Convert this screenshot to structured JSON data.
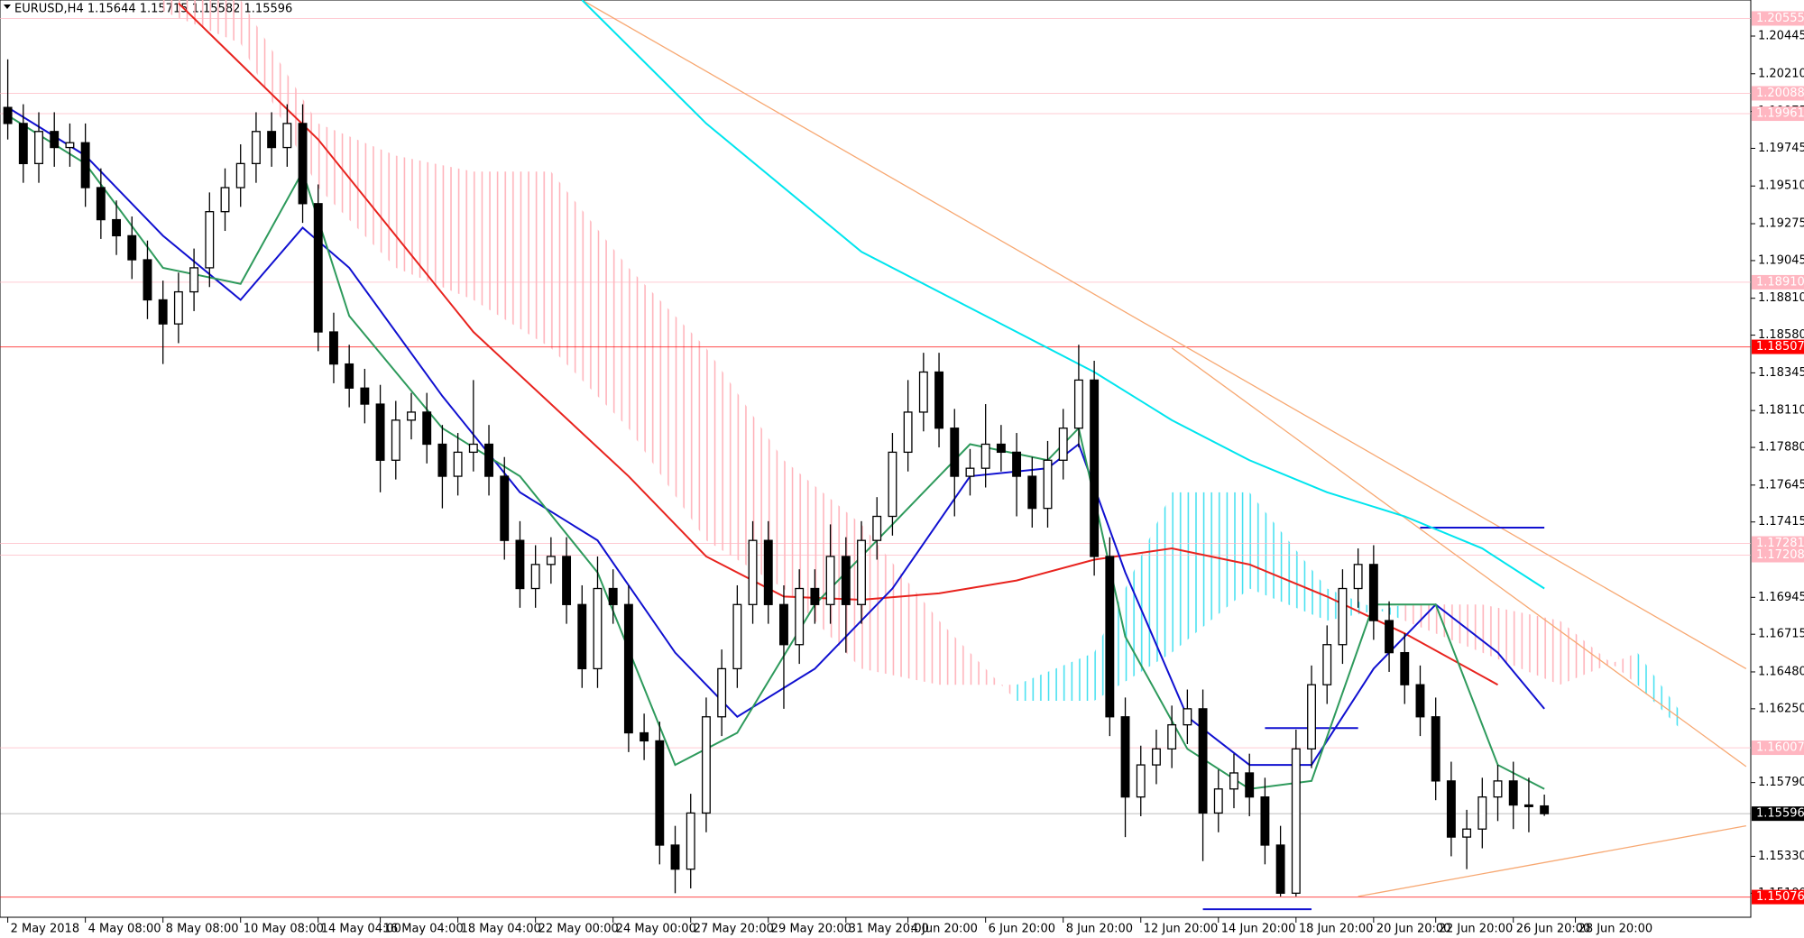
{
  "chart_data": {
    "type": "candlestick",
    "title": "EURUSD,H4  1.15644 1.15715 1.15582 1.15596",
    "xlim": [
      -0.5,
      112.3
    ],
    "ylim": [
      1.1495,
      1.2067
    ],
    "xticks": [
      {
        "value": 0,
        "label": "2 May 2018"
      },
      {
        "value": 5,
        "label": "4 May 08:00"
      },
      {
        "value": 10,
        "label": "8 May 08:00"
      },
      {
        "value": 15,
        "label": "10 May 08:00"
      },
      {
        "value": 20,
        "label": "14 May 04:00"
      },
      {
        "value": 24,
        "label": "16 May 04:00"
      },
      {
        "value": 29,
        "label": "18 May 04:00"
      },
      {
        "value": 34,
        "label": "22 May 00:00"
      },
      {
        "value": 39,
        "label": "24 May 00:00"
      },
      {
        "value": 44,
        "label": "27 May 20:00"
      },
      {
        "value": 49,
        "label": "29 May 20:00"
      },
      {
        "value": 54,
        "label": "31 May 20:00"
      },
      {
        "value": 58,
        "label": "4 Jun 20:00"
      },
      {
        "value": 63,
        "label": "6 Jun 20:00"
      },
      {
        "value": 68,
        "label": "8 Jun 20:00"
      },
      {
        "value": 73,
        "label": "12 Jun 20:00"
      },
      {
        "value": 78,
        "label": "14 Jun 20:00"
      },
      {
        "value": 83,
        "label": "18 Jun 20:00"
      },
      {
        "value": 88,
        "label": "20 Jun 20:00"
      },
      {
        "value": 92,
        "label": "22 Jun 20:00"
      },
      {
        "value": 97,
        "label": "26 Jun 20:00"
      },
      {
        "value": 101,
        "label": "28 Jun 20:00"
      }
    ],
    "yticks": [
      1.20445,
      {
        "value": 1.2021,
        "label": "1.20210"
      },
      1.19975,
      1.19745,
      {
        "value": 1.1951,
        "label": "1.19510"
      },
      1.19275,
      1.19045,
      {
        "value": 1.1881,
        "label": "1.18810"
      },
      {
        "value": 1.1858,
        "label": "1.18580"
      },
      1.18345,
      {
        "value": 1.1811,
        "label": "1.18110"
      },
      {
        "value": 1.1788,
        "label": "1.17880"
      },
      1.17645,
      1.17415,
      1.16945,
      1.16715,
      {
        "value": 1.1648,
        "label": "1.16480"
      },
      {
        "value": 1.1625,
        "label": "1.16250"
      },
      {
        "value": 1.1579,
        "label": "1.15790"
      },
      {
        "value": 1.1533,
        "label": "1.15330"
      },
      {
        "value": 1.151,
        "label": "1.15100"
      }
    ],
    "up_color": "#ffffff",
    "down_color": "#000000",
    "ohlc": [
      [
        1.2,
        1.203,
        1.198,
        1.199
      ],
      [
        1.199,
        1.2002,
        1.1953,
        1.1965
      ],
      [
        1.1965,
        1.1997,
        1.1953,
        1.1985
      ],
      [
        1.1985,
        1.1997,
        1.1963,
        1.1975
      ],
      [
        1.1975,
        1.199,
        1.1963,
        1.1978
      ],
      [
        1.1978,
        1.199,
        1.1938,
        1.195
      ],
      [
        1.195,
        1.1962,
        1.1918,
        1.193
      ],
      [
        1.193,
        1.1942,
        1.1908,
        1.192
      ],
      [
        1.192,
        1.1932,
        1.1893,
        1.1905
      ],
      [
        1.1905,
        1.1917,
        1.1868,
        1.188
      ],
      [
        1.188,
        1.1892,
        1.184,
        1.1865
      ],
      [
        1.1865,
        1.1897,
        1.1853,
        1.1885
      ],
      [
        1.1885,
        1.1912,
        1.1873,
        1.19
      ],
      [
        1.19,
        1.1947,
        1.1888,
        1.1935
      ],
      [
        1.1935,
        1.1962,
        1.1923,
        1.195
      ],
      [
        1.195,
        1.1977,
        1.1938,
        1.1965
      ],
      [
        1.1965,
        1.1997,
        1.1953,
        1.1985
      ],
      [
        1.1985,
        1.1997,
        1.1963,
        1.1975
      ],
      [
        1.1975,
        1.2002,
        1.1963,
        1.199
      ],
      [
        1.199,
        1.2002,
        1.1928,
        1.194
      ],
      [
        1.194,
        1.1952,
        1.1848,
        1.186
      ],
      [
        1.186,
        1.1872,
        1.1828,
        1.184
      ],
      [
        1.184,
        1.1852,
        1.1813,
        1.1825
      ],
      [
        1.1825,
        1.1837,
        1.1803,
        1.1815
      ],
      [
        1.1815,
        1.1827,
        1.176,
        1.178
      ],
      [
        1.178,
        1.1817,
        1.1768,
        1.1805
      ],
      [
        1.1805,
        1.1822,
        1.1793,
        1.181
      ],
      [
        1.181,
        1.1822,
        1.1778,
        1.179
      ],
      [
        1.179,
        1.1802,
        1.175,
        1.177
      ],
      [
        1.177,
        1.1797,
        1.1758,
        1.1785
      ],
      [
        1.1785,
        1.183,
        1.1773,
        1.179
      ],
      [
        1.179,
        1.1802,
        1.1758,
        1.177
      ],
      [
        1.177,
        1.1782,
        1.1718,
        1.173
      ],
      [
        1.173,
        1.1742,
        1.1688,
        1.17
      ],
      [
        1.17,
        1.1727,
        1.1688,
        1.1715
      ],
      [
        1.1715,
        1.1732,
        1.1703,
        1.172
      ],
      [
        1.172,
        1.1732,
        1.1678,
        1.169
      ],
      [
        1.169,
        1.1702,
        1.1638,
        1.165
      ],
      [
        1.165,
        1.172,
        1.1638,
        1.17
      ],
      [
        1.17,
        1.1712,
        1.1678,
        1.169
      ],
      [
        1.169,
        1.1702,
        1.1598,
        1.161
      ],
      [
        1.161,
        1.1622,
        1.1593,
        1.1605
      ],
      [
        1.1605,
        1.1617,
        1.1528,
        1.154
      ],
      [
        1.154,
        1.1552,
        1.151,
        1.1525
      ],
      [
        1.1525,
        1.1572,
        1.1513,
        1.156
      ],
      [
        1.156,
        1.1632,
        1.1548,
        1.162
      ],
      [
        1.162,
        1.1662,
        1.1608,
        1.165
      ],
      [
        1.165,
        1.1702,
        1.1638,
        1.169
      ],
      [
        1.169,
        1.1742,
        1.1678,
        1.173
      ],
      [
        1.173,
        1.1742,
        1.1678,
        1.169
      ],
      [
        1.169,
        1.1702,
        1.1625,
        1.1665
      ],
      [
        1.1665,
        1.1712,
        1.1653,
        1.17
      ],
      [
        1.17,
        1.1712,
        1.1678,
        1.169
      ],
      [
        1.169,
        1.174,
        1.1678,
        1.172
      ],
      [
        1.172,
        1.1732,
        1.166,
        1.169
      ],
      [
        1.169,
        1.1742,
        1.1678,
        1.173
      ],
      [
        1.173,
        1.1757,
        1.1718,
        1.1745
      ],
      [
        1.1745,
        1.1797,
        1.1733,
        1.1785
      ],
      [
        1.1785,
        1.183,
        1.1773,
        1.181
      ],
      [
        1.181,
        1.1847,
        1.1798,
        1.1835
      ],
      [
        1.1835,
        1.1847,
        1.1788,
        1.18
      ],
      [
        1.18,
        1.1812,
        1.1745,
        1.177
      ],
      [
        1.177,
        1.1787,
        1.1758,
        1.1775
      ],
      [
        1.1775,
        1.1815,
        1.1763,
        1.179
      ],
      [
        1.179,
        1.1802,
        1.1773,
        1.1785
      ],
      [
        1.1785,
        1.1797,
        1.1745,
        1.177
      ],
      [
        1.177,
        1.1782,
        1.1738,
        1.175
      ],
      [
        1.175,
        1.1792,
        1.1738,
        1.178
      ],
      [
        1.178,
        1.1812,
        1.1768,
        1.18
      ],
      [
        1.18,
        1.1852,
        1.1788,
        1.183
      ],
      [
        1.183,
        1.1842,
        1.1708,
        1.172
      ],
      [
        1.172,
        1.1732,
        1.1608,
        1.162
      ],
      [
        1.162,
        1.1632,
        1.1545,
        1.157
      ],
      [
        1.157,
        1.1602,
        1.1558,
        1.159
      ],
      [
        1.159,
        1.1612,
        1.1578,
        1.16
      ],
      [
        1.16,
        1.1627,
        1.1588,
        1.1615
      ],
      [
        1.1615,
        1.1637,
        1.1603,
        1.1625
      ],
      [
        1.1625,
        1.1637,
        1.153,
        1.156
      ],
      [
        1.156,
        1.1587,
        1.1548,
        1.1575
      ],
      [
        1.1575,
        1.1597,
        1.1563,
        1.1585
      ],
      [
        1.1585,
        1.1597,
        1.1558,
        1.157
      ],
      [
        1.157,
        1.1582,
        1.1528,
        1.154
      ],
      [
        1.154,
        1.1552,
        1.1508,
        1.151
      ],
      [
        1.151,
        1.1612,
        1.1508,
        1.16
      ],
      [
        1.16,
        1.1652,
        1.1588,
        1.164
      ],
      [
        1.164,
        1.1677,
        1.1628,
        1.1665
      ],
      [
        1.1665,
        1.1712,
        1.1653,
        1.17
      ],
      [
        1.17,
        1.1725,
        1.1688,
        1.1715
      ],
      [
        1.1715,
        1.1727,
        1.1668,
        1.168
      ],
      [
        1.168,
        1.1692,
        1.1648,
        1.166
      ],
      [
        1.166,
        1.1672,
        1.1628,
        1.164
      ],
      [
        1.164,
        1.1652,
        1.1608,
        1.162
      ],
      [
        1.162,
        1.1632,
        1.1568,
        1.158
      ],
      [
        1.158,
        1.1592,
        1.1533,
        1.1545
      ],
      [
        1.1545,
        1.1562,
        1.1525,
        1.155
      ],
      [
        1.155,
        1.1582,
        1.1538,
        1.157
      ],
      [
        1.157,
        1.159,
        1.1555,
        1.158
      ],
      [
        1.158,
        1.1592,
        1.155,
        1.1565
      ],
      [
        1.1565,
        1.1582,
        1.1548,
        1.1564
      ],
      [
        1.15644,
        1.15715,
        1.15582,
        1.15596
      ]
    ],
    "cloud": {
      "x": [
        10,
        15,
        20,
        25,
        30,
        35,
        40,
        45,
        50,
        55,
        60,
        65,
        70,
        75,
        80,
        85,
        90,
        95,
        100,
        105,
        108
      ],
      "span_a": [
        1.206,
        1.204,
        1.195,
        1.19,
        1.188,
        1.185,
        1.18,
        1.173,
        1.17,
        1.165,
        1.164,
        1.164,
        1.166,
        1.176,
        1.176,
        1.17,
        1.168,
        1.166,
        1.164,
        1.166,
        1.162
      ],
      "span_b": [
        1.2067,
        1.2067,
        1.199,
        1.197,
        1.196,
        1.196,
        1.19,
        1.185,
        1.178,
        1.174,
        1.168,
        1.163,
        1.163,
        1.166,
        1.17,
        1.168,
        1.169,
        1.169,
        1.168,
        1.164,
        1.161
      ],
      "bull_color": "#40e0f0",
      "bear_color": "#ffb0b8"
    },
    "indicators": [
      {
        "color": "#00e5ee",
        "x": [
          37,
          45,
          55,
          65,
          70,
          75,
          80,
          85,
          90,
          95,
          99
        ],
        "values": [
          1.2067,
          1.199,
          1.191,
          1.186,
          1.1835,
          1.1805,
          1.178,
          1.176,
          1.1745,
          1.1725,
          1.17
        ]
      },
      {
        "color": "#e8231e",
        "x": [
          11,
          20,
          30,
          40,
          45,
          50,
          55,
          60,
          65,
          70,
          75,
          80,
          85,
          90,
          96
        ],
        "values": [
          1.2065,
          1.198,
          1.186,
          1.177,
          1.172,
          1.1695,
          1.1693,
          1.1697,
          1.1705,
          1.1718,
          1.1725,
          1.1715,
          1.1695,
          1.1672,
          1.164
        ]
      },
      {
        "color": "#1010d0",
        "x": [
          0,
          5,
          10,
          15,
          19,
          22,
          28,
          33,
          38,
          43,
          47,
          52,
          57,
          62,
          67,
          69,
          72,
          76,
          80,
          84,
          88,
          92,
          96,
          99
        ],
        "values": [
          1.2,
          1.197,
          1.192,
          1.188,
          1.1925,
          1.19,
          1.182,
          1.176,
          1.173,
          1.166,
          1.162,
          1.165,
          1.17,
          1.177,
          1.1775,
          1.179,
          1.171,
          1.162,
          1.159,
          1.159,
          1.165,
          1.169,
          1.166,
          1.1625
        ]
      },
      {
        "color": "#2e9a5c",
        "x": [
          0,
          5,
          10,
          15,
          19,
          22,
          28,
          33,
          38,
          43,
          47,
          52,
          57,
          62,
          67,
          69,
          72,
          76,
          80,
          84,
          88,
          92,
          96,
          99
        ],
        "values": [
          1.1995,
          1.1965,
          1.19,
          1.189,
          1.196,
          1.187,
          1.18,
          1.177,
          1.171,
          1.159,
          1.161,
          1.169,
          1.174,
          1.179,
          1.178,
          1.18,
          1.167,
          1.16,
          1.1575,
          1.158,
          1.169,
          1.169,
          1.159,
          1.1575
        ]
      }
    ],
    "trend_lines": [
      {
        "color": "#f7a872",
        "x": [
          37,
          112
        ],
        "values": [
          1.2067,
          1.165
        ]
      },
      {
        "color": "#f7a872",
        "x": [
          75,
          112
        ],
        "values": [
          1.185,
          1.1589
        ]
      },
      {
        "color": "#f7a872",
        "x": [
          87,
          112
        ],
        "values": [
          1.1508,
          1.1552
        ]
      }
    ],
    "segments": [
      {
        "color": "#1010d0",
        "x": [
          91,
          99
        ],
        "value": 1.1738
      },
      {
        "color": "#1010d0",
        "x": [
          81,
          87
        ],
        "value": 1.1613
      },
      {
        "color": "#1010d0",
        "x": [
          77,
          84
        ],
        "value": 1.15
      }
    ],
    "price_levels": [
      {
        "value": 1.20555,
        "label": "1.20555",
        "color": "#ffb6c1"
      },
      {
        "value": 1.20088,
        "label": "1.20088",
        "color": "#ffb6c1"
      },
      {
        "value": 1.19961,
        "label": "1.19961",
        "color": "#ffb6c1"
      },
      {
        "value": 1.1891,
        "label": "1.18910",
        "color": "#ffb6c1"
      },
      {
        "value": 1.18507,
        "label": "1.18507",
        "color": "#ff0000"
      },
      {
        "value": 1.17281,
        "label": "1.17281",
        "color": "#ffb6c1"
      },
      {
        "value": 1.17208,
        "label": "1.17208",
        "color": "#ffb6c1"
      },
      {
        "value": 1.16007,
        "label": "1.16007",
        "color": "#ffb6c1"
      },
      {
        "value": 1.15596,
        "label": "1.15596",
        "color": "#000000"
      },
      {
        "value": 1.15076,
        "label": "1.15076",
        "color": "#ff0000"
      }
    ]
  }
}
